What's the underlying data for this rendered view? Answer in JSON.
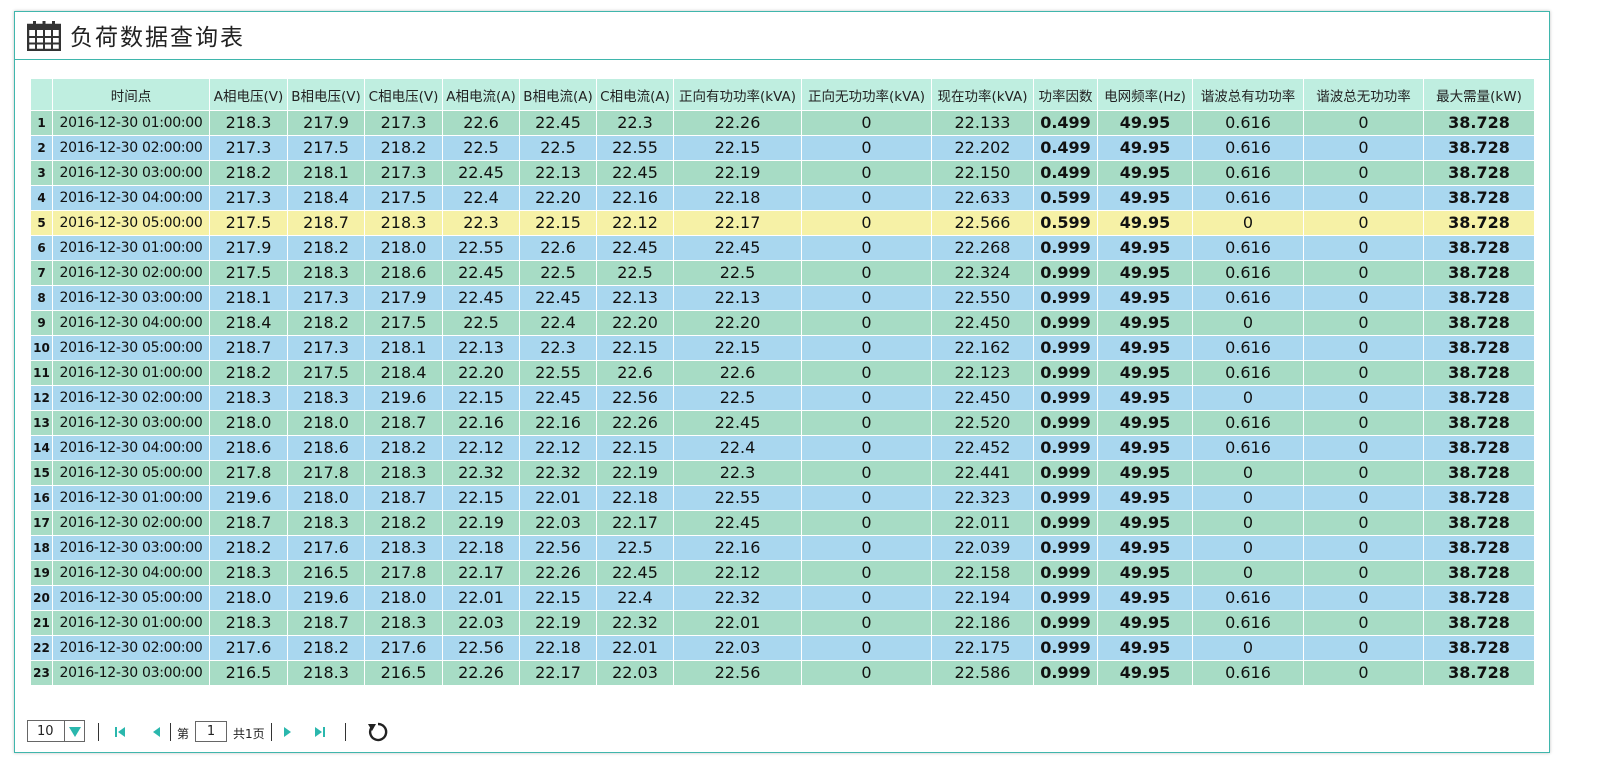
{
  "title": "负荷数据查询表",
  "columns": [
    "",
    "时间点",
    "A相电压(V)",
    "B相电压(V)",
    "C相电压(V)",
    "A相电流(A)",
    "B相电流(A)",
    "C相电流(A)",
    "正向有功功率(kVA)",
    "正向无功功率(kVA)",
    "现在功率(kVA)",
    "功率因数",
    "电网频率(Hz)",
    "谐波总有功功率",
    "谐波总无功功率",
    "最大需量(kW)"
  ],
  "rows": [
    [
      "1",
      "2016-12-30  01:00:00",
      "218.3",
      "217.9",
      "217.3",
      "22.6",
      "22.45",
      "22.3",
      "22.26",
      "0",
      "22.133",
      "0.499",
      "49.95",
      "0.616",
      "0",
      "38.728"
    ],
    [
      "2",
      "2016-12-30  02:00:00",
      "217.3",
      "217.5",
      "218.2",
      "22.5",
      "22.5",
      "22.55",
      "22.15",
      "0",
      "22.202",
      "0.499",
      "49.95",
      "0.616",
      "0",
      "38.728"
    ],
    [
      "3",
      "2016-12-30  03:00:00",
      "218.2",
      "218.1",
      "217.3",
      "22.45",
      "22.13",
      "22.45",
      "22.19",
      "0",
      "22.150",
      "0.499",
      "49.95",
      "0.616",
      "0",
      "38.728"
    ],
    [
      "4",
      "2016-12-30  04:00:00",
      "217.3",
      "218.4",
      "217.5",
      "22.4",
      "22.20",
      "22.16",
      "22.18",
      "0",
      "22.633",
      "0.599",
      "49.95",
      "0.616",
      "0",
      "38.728"
    ],
    [
      "5",
      "2016-12-30  05:00:00",
      "217.5",
      "218.7",
      "218.3",
      "22.3",
      "22.15",
      "22.12",
      "22.17",
      "0",
      "22.566",
      "0.599",
      "49.95",
      "0",
      "0",
      "38.728"
    ],
    [
      "6",
      "2016-12-30  01:00:00",
      "217.9",
      "218.2",
      "218.0",
      "22.55",
      "22.6",
      "22.45",
      "22.45",
      "0",
      "22.268",
      "0.999",
      "49.95",
      "0.616",
      "0",
      "38.728"
    ],
    [
      "7",
      "2016-12-30  02:00:00",
      "217.5",
      "218.3",
      "218.6",
      "22.45",
      "22.5",
      "22.5",
      "22.5",
      "0",
      "22.324",
      "0.999",
      "49.95",
      "0.616",
      "0",
      "38.728"
    ],
    [
      "8",
      "2016-12-30  03:00:00",
      "218.1",
      "217.3",
      "217.9",
      "22.45",
      "22.45",
      "22.13",
      "22.13",
      "0",
      "22.550",
      "0.999",
      "49.95",
      "0.616",
      "0",
      "38.728"
    ],
    [
      "9",
      "2016-12-30  04:00:00",
      "218.4",
      "218.2",
      "217.5",
      "22.5",
      "22.4",
      "22.20",
      "22.20",
      "0",
      "22.450",
      "0.999",
      "49.95",
      "0",
      "0",
      "38.728"
    ],
    [
      "10",
      "2016-12-30  05:00:00",
      "218.7",
      "217.3",
      "218.1",
      "22.13",
      "22.3",
      "22.15",
      "22.15",
      "0",
      "22.162",
      "0.999",
      "49.95",
      "0.616",
      "0",
      "38.728"
    ],
    [
      "11",
      "2016-12-30  01:00:00",
      "218.2",
      "217.5",
      "218.4",
      "22.20",
      "22.55",
      "22.6",
      "22.6",
      "0",
      "22.123",
      "0.999",
      "49.95",
      "0.616",
      "0",
      "38.728"
    ],
    [
      "12",
      "2016-12-30  02:00:00",
      "218.3",
      "218.3",
      "219.6",
      "22.15",
      "22.45",
      "22.56",
      "22.5",
      "0",
      "22.450",
      "0.999",
      "49.95",
      "0",
      "0",
      "38.728"
    ],
    [
      "13",
      "2016-12-30  03:00:00",
      "218.0",
      "218.0",
      "218.7",
      "22.16",
      "22.16",
      "22.26",
      "22.45",
      "0",
      "22.520",
      "0.999",
      "49.95",
      "0.616",
      "0",
      "38.728"
    ],
    [
      "14",
      "2016-12-30  04:00:00",
      "218.6",
      "218.6",
      "218.2",
      "22.12",
      "22.12",
      "22.15",
      "22.4",
      "0",
      "22.452",
      "0.999",
      "49.95",
      "0.616",
      "0",
      "38.728"
    ],
    [
      "15",
      "2016-12-30  05:00:00",
      "217.8",
      "217.8",
      "218.3",
      "22.32",
      "22.32",
      "22.19",
      "22.3",
      "0",
      "22.441",
      "0.999",
      "49.95",
      "0",
      "0",
      "38.728"
    ],
    [
      "16",
      "2016-12-30  01:00:00",
      "219.6",
      "218.0",
      "218.7",
      "22.15",
      "22.01",
      "22.18",
      "22.55",
      "0",
      "22.323",
      "0.999",
      "49.95",
      "0",
      "0",
      "38.728"
    ],
    [
      "17",
      "2016-12-30  02:00:00",
      "218.7",
      "218.3",
      "218.2",
      "22.19",
      "22.03",
      "22.17",
      "22.45",
      "0",
      "22.011",
      "0.999",
      "49.95",
      "0",
      "0",
      "38.728"
    ],
    [
      "18",
      "2016-12-30  03:00:00",
      "218.2",
      "217.6",
      "218.3",
      "22.18",
      "22.56",
      "22.5",
      "22.16",
      "0",
      "22.039",
      "0.999",
      "49.95",
      "0",
      "0",
      "38.728"
    ],
    [
      "19",
      "2016-12-30  04:00:00",
      "218.3",
      "216.5",
      "217.8",
      "22.17",
      "22.26",
      "22.45",
      "22.12",
      "0",
      "22.158",
      "0.999",
      "49.95",
      "0",
      "0",
      "38.728"
    ],
    [
      "20",
      "2016-12-30  05:00:00",
      "218.0",
      "219.6",
      "218.0",
      "22.01",
      "22.15",
      "22.4",
      "22.32",
      "0",
      "22.194",
      "0.999",
      "49.95",
      "0.616",
      "0",
      "38.728"
    ],
    [
      "21",
      "2016-12-30  01:00:00",
      "218.3",
      "218.7",
      "218.3",
      "22.03",
      "22.19",
      "22.32",
      "22.01",
      "0",
      "22.186",
      "0.999",
      "49.95",
      "0.616",
      "0",
      "38.728"
    ],
    [
      "22",
      "2016-12-30  02:00:00",
      "217.6",
      "218.2",
      "217.6",
      "22.56",
      "22.18",
      "22.01",
      "22.03",
      "0",
      "22.175",
      "0.999",
      "49.95",
      "0",
      "0",
      "38.728"
    ],
    [
      "23",
      "2016-12-30  03:00:00",
      "216.5",
      "218.3",
      "216.5",
      "22.26",
      "22.17",
      "22.03",
      "22.56",
      "0",
      "22.586",
      "0.999",
      "49.95",
      "0.616",
      "0",
      "38.728"
    ]
  ],
  "row_colors": [
    "g",
    "bl",
    "g",
    "bl",
    "y",
    "bl",
    "g",
    "bl",
    "g",
    "bl",
    "g",
    "bl",
    "g",
    "bl",
    "g",
    "bl",
    "g",
    "bl",
    "g",
    "bl",
    "g",
    "bl",
    "g"
  ],
  "colors": {
    "green_row": "#a7dcc5",
    "blue_row": "#a9d7ef",
    "highlight_row": "#f6f1a6",
    "header": "#bfeee0",
    "accent": "#2ab7ad"
  },
  "pager": {
    "page_size": "10",
    "page_prefix": "第",
    "current_page": "1",
    "total_pages": "共1页",
    "icons": [
      "first-page-icon",
      "prev-page-icon",
      "next-page-icon",
      "last-page-icon",
      "refresh-icon"
    ]
  }
}
